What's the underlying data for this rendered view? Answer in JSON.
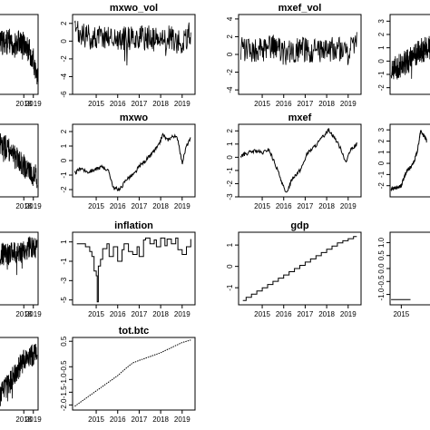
{
  "chart_data": [
    {
      "id": "c00",
      "title": "",
      "type": "line",
      "style": "noisy",
      "x_ticks": [
        "2018",
        "2019"
      ],
      "y_ticks": [],
      "x_range": [
        2013.6,
        2019.5
      ],
      "ylim": [
        -5,
        3
      ],
      "series": [
        {
          "x": [
            2013.6,
            2014,
            2014.5,
            2015,
            2015.5,
            2016,
            2016.5,
            2017,
            2017.5,
            2018,
            2018.5,
            2019,
            2019.3,
            2019.5
          ],
          "y": [
            0,
            0.3,
            0.2,
            0.4,
            0.1,
            0.2,
            0.3,
            0.1,
            0.4,
            0.1,
            -0.5,
            -1.5,
            -3.5,
            -2.5
          ]
        }
      ]
    },
    {
      "id": "c01",
      "title": "mxwo_vol",
      "type": "line",
      "style": "noisy",
      "x_ticks": [
        "2015",
        "2016",
        "2017",
        "2018",
        "2019"
      ],
      "y_ticks": [
        "2",
        "0",
        "-2",
        "-4",
        "-6"
      ],
      "x_range": [
        2013.9,
        2019.6
      ],
      "ylim": [
        -6,
        3
      ],
      "series": [
        {
          "x": [
            2014,
            2014.5,
            2015,
            2015.5,
            2016,
            2016.5,
            2017,
            2017.5,
            2018,
            2018.5,
            2019,
            2019.4
          ],
          "y": [
            1,
            0.5,
            0.4,
            0.6,
            0.3,
            0.2,
            0.5,
            0.3,
            0.1,
            0.4,
            -0.5,
            1
          ]
        }
      ]
    },
    {
      "id": "c02",
      "title": "mxef_vol",
      "type": "line",
      "style": "noisy",
      "x_ticks": [
        "2015",
        "2016",
        "2017",
        "2018",
        "2019"
      ],
      "y_ticks": [
        "4",
        "2",
        "0",
        "-2",
        "-4"
      ],
      "x_range": [
        2013.9,
        2019.6
      ],
      "ylim": [
        -4.5,
        4.5
      ],
      "series": [
        {
          "x": [
            2014,
            2014.5,
            2015,
            2015.5,
            2016,
            2016.5,
            2017,
            2017.5,
            2018,
            2018.5,
            2019,
            2019.4
          ],
          "y": [
            0.5,
            0.6,
            0.4,
            0.8,
            0.2,
            0.4,
            0.6,
            0.3,
            0.5,
            0.7,
            0.4,
            1.5
          ]
        }
      ]
    },
    {
      "id": "c03",
      "title": "",
      "type": "line",
      "style": "noisy",
      "x_ticks": [],
      "y_ticks": [
        "3",
        "2",
        "1",
        "0",
        "-1",
        "-2"
      ],
      "x_range": [
        2013.9,
        2019.6
      ],
      "ylim": [
        -2.5,
        3.5
      ],
      "series": [
        {
          "x": [
            2014,
            2014.5,
            2015,
            2015.5,
            2016,
            2016.5,
            2017,
            2017.5,
            2018,
            2018.5,
            2019,
            2019.4
          ],
          "y": [
            -0.8,
            -0.5,
            -0.3,
            -0.1,
            0.2,
            0.5,
            0.8,
            0.9,
            1,
            1.2,
            1.5,
            1.6
          ]
        }
      ]
    },
    {
      "id": "c10",
      "title": "",
      "type": "line",
      "style": "noisy",
      "x_ticks": [
        "2018",
        "2019"
      ],
      "y_ticks": [],
      "x_range": [
        2013.6,
        2019.5
      ],
      "ylim": [
        -2,
        2
      ],
      "series": [
        {
          "x": [
            2013.6,
            2014.5,
            2015.5,
            2016.5,
            2017,
            2017.5,
            2018,
            2018.5,
            2019,
            2019.4
          ],
          "y": [
            1.8,
            1.4,
            1,
            0.6,
            0.2,
            0,
            -0.3,
            -0.6,
            -0.8,
            -0.9
          ]
        }
      ]
    },
    {
      "id": "c11",
      "title": "mxwo",
      "type": "line",
      "style": "smooth",
      "x_ticks": [
        "2015",
        "2016",
        "2017",
        "2018",
        "2019"
      ],
      "y_ticks": [
        "2",
        "1",
        "0",
        "-1",
        "-2"
      ],
      "x_range": [
        2013.9,
        2019.6
      ],
      "ylim": [
        -2.5,
        2.5
      ],
      "series": [
        {
          "x": [
            2014,
            2014.3,
            2014.6,
            2015,
            2015.3,
            2015.6,
            2015.8,
            2016.1,
            2016.4,
            2016.8,
            2017,
            2017.3,
            2017.6,
            2017.9,
            2018.1,
            2018.3,
            2018.6,
            2018.8,
            2019,
            2019.2,
            2019.4
          ],
          "y": [
            -0.9,
            -0.5,
            -0.8,
            -0.6,
            -0.4,
            -0.8,
            -1.9,
            -2,
            -1.3,
            -0.9,
            -0.4,
            0,
            0.5,
            1,
            1.8,
            1.4,
            1.7,
            1.5,
            -0.2,
            1,
            1.5
          ]
        }
      ]
    },
    {
      "id": "c12",
      "title": "mxef",
      "type": "line",
      "style": "smooth",
      "x_ticks": [
        "2015",
        "2016",
        "2017",
        "2018",
        "2019"
      ],
      "y_ticks": [
        "2",
        "1",
        "0",
        "-1",
        "-2",
        "-3"
      ],
      "x_range": [
        2013.9,
        2019.6
      ],
      "ylim": [
        -3,
        2.5
      ],
      "series": [
        {
          "x": [
            2014,
            2014.3,
            2014.7,
            2015,
            2015.3,
            2015.6,
            2015.9,
            2016.1,
            2016.4,
            2016.8,
            2017.1,
            2017.5,
            2017.9,
            2018.1,
            2018.4,
            2018.7,
            2018.9,
            2019.1,
            2019.4
          ],
          "y": [
            0.1,
            0.3,
            0.5,
            0.3,
            0.6,
            -0.5,
            -1.8,
            -2.8,
            -1.6,
            -0.9,
            0.3,
            0.9,
            1.7,
            2.1,
            1.4,
            0.5,
            -0.4,
            0.5,
            1
          ]
        }
      ]
    },
    {
      "id": "c13",
      "title": "",
      "type": "line",
      "style": "smooth",
      "x_ticks": [],
      "y_ticks": [
        "3",
        "2",
        "1",
        "0",
        "-1",
        "-2"
      ],
      "x_range": [
        2013.9,
        2019.6
      ],
      "ylim": [
        -3,
        3.5
      ],
      "series": [
        {
          "x": [
            2014,
            2014.5,
            2015,
            2015.3,
            2015.6,
            2016,
            2016.3,
            2016.6,
            2016.9,
            2017.2,
            2017.5
          ],
          "y": [
            -2.3,
            -2.2,
            -2,
            -1.2,
            -0.6,
            -0.3,
            0.3,
            1.2,
            2.9,
            2.5,
            2
          ]
        }
      ]
    },
    {
      "id": "c20",
      "title": "",
      "type": "line",
      "style": "noisy",
      "x_ticks": [
        "2018",
        "2019"
      ],
      "y_ticks": [],
      "x_range": [
        2013.6,
        2019.5
      ],
      "ylim": [
        -2,
        2
      ],
      "series": [
        {
          "x": [
            2013.6,
            2014.5,
            2015.5,
            2016.5,
            2017.5,
            2018,
            2018.5,
            2019,
            2019.4
          ],
          "y": [
            0.6,
            0.7,
            0.8,
            0.8,
            0.9,
            1,
            1.1,
            1.2,
            1
          ]
        }
      ]
    },
    {
      "id": "c21",
      "title": "inflation",
      "type": "line",
      "style": "step",
      "x_ticks": [
        "2015",
        "2016",
        "2017",
        "2018",
        "2019"
      ],
      "y_ticks": [
        "1",
        "-1",
        "-3",
        "-5"
      ],
      "x_range": [
        2013.9,
        2019.6
      ],
      "ylim": [
        -5.5,
        2
      ],
      "series": [
        {
          "x": [
            2014.1,
            2014.3,
            2014.5,
            2014.7,
            2014.8,
            2014.9,
            2015,
            2015.05,
            2015.1,
            2015.2,
            2015.3,
            2015.5,
            2015.6,
            2015.8,
            2016,
            2016.2,
            2016.3,
            2016.5,
            2016.7,
            2016.9,
            2017,
            2017.2,
            2017.3,
            2017.5,
            2017.7,
            2017.8,
            2018,
            2018.2,
            2018.3,
            2018.5,
            2018.7,
            2018.8,
            2019,
            2019.2,
            2019.4
          ],
          "y": [
            0.8,
            0.8,
            0.5,
            0,
            -0.5,
            -2,
            -2.5,
            -5.2,
            -1.5,
            -0.8,
            0.3,
            0.8,
            -0.5,
            0.5,
            -1,
            0.2,
            0.8,
            0,
            -0.3,
            0.5,
            -0.5,
            1.2,
            1.4,
            0.8,
            1.2,
            0.5,
            1.4,
            0.6,
            1.3,
            0.8,
            1.4,
            0.2,
            -0.3,
            0.5,
            1.3
          ]
        }
      ]
    },
    {
      "id": "c22",
      "title": "gdp",
      "type": "line",
      "style": "step",
      "x_ticks": [
        "2015",
        "2016",
        "2017",
        "2018",
        "2019"
      ],
      "y_ticks": [
        "1",
        "0",
        "-1"
      ],
      "x_range": [
        2013.9,
        2019.6
      ],
      "ylim": [
        -1.8,
        1.6
      ],
      "series": [
        {
          "x": [
            2014.1,
            2014.25,
            2014.5,
            2014.75,
            2015,
            2015.25,
            2015.5,
            2015.75,
            2016,
            2016.25,
            2016.5,
            2016.75,
            2017,
            2017.25,
            2017.5,
            2017.75,
            2018,
            2018.25,
            2018.5,
            2018.75,
            2019,
            2019.25,
            2019.4
          ],
          "y": [
            -1.6,
            -1.45,
            -1.3,
            -1.15,
            -1.0,
            -0.85,
            -0.7,
            -0.55,
            -0.4,
            -0.25,
            -0.1,
            0.05,
            0.2,
            0.35,
            0.5,
            0.65,
            0.8,
            0.95,
            1.1,
            1.2,
            1.3,
            1.4,
            1.4
          ]
        }
      ]
    },
    {
      "id": "c23",
      "title": "",
      "type": "line",
      "style": "step",
      "x_ticks": [
        "2015"
      ],
      "y_ticks": [
        "1.0",
        "0.5",
        "0.0",
        "-0.5",
        "-1.0"
      ],
      "x_range": [
        2013.9,
        2019.6
      ],
      "ylim": [
        -1.4,
        1.4
      ],
      "series": [
        {
          "x": [
            2014,
            2015.9
          ],
          "y": [
            -1.2,
            -1.2
          ]
        }
      ]
    },
    {
      "id": "c30",
      "title": "",
      "type": "line",
      "style": "noisy",
      "x_ticks": [
        "2018",
        "2019"
      ],
      "y_ticks": [],
      "x_range": [
        2013.6,
        2019.5
      ],
      "ylim": [
        -2,
        2
      ],
      "series": [
        {
          "x": [
            2013.6,
            2015.5,
            2016.5,
            2017.3,
            2017.8,
            2018.2,
            2018.7,
            2019.2,
            2019.4
          ],
          "y": [
            -1.8,
            -1.2,
            -0.5,
            0.2,
            0.6,
            0.9,
            1.1,
            1,
            1.1
          ]
        }
      ]
    },
    {
      "id": "c31",
      "title": "tot.btc",
      "type": "line",
      "style": "dotted",
      "x_ticks": [
        "2015",
        "2016",
        "2017",
        "2018",
        "2019"
      ],
      "y_ticks": [
        "0.5",
        "-0.5",
        "-1.0",
        "-1.5",
        "-2.0"
      ],
      "x_range": [
        2013.9,
        2019.6
      ],
      "ylim": [
        -2.2,
        0.65
      ],
      "series": [
        {
          "x": [
            2014,
            2014.5,
            2015,
            2015.5,
            2016,
            2016.4,
            2016.7,
            2017,
            2017.5,
            2018,
            2018.5,
            2019,
            2019.4
          ],
          "y": [
            -2.05,
            -1.75,
            -1.45,
            -1.15,
            -0.85,
            -0.55,
            -0.35,
            -0.25,
            -0.1,
            0.05,
            0.25,
            0.45,
            0.55
          ]
        }
      ]
    }
  ]
}
